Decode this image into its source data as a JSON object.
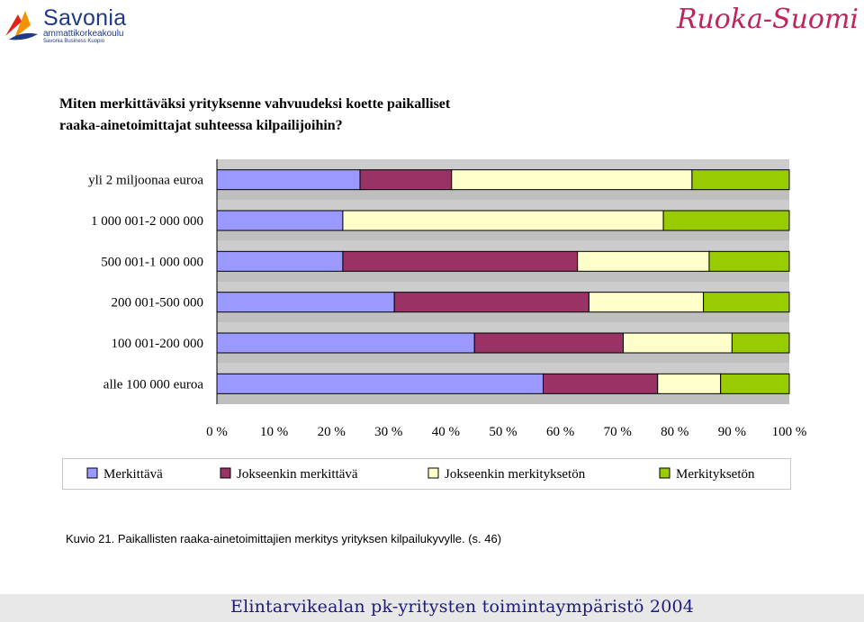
{
  "header": {
    "logo_name": "Savonia",
    "logo_sub": "ammattikorkeakoulu",
    "logo_sub2": "Savonia Business Kuopio",
    "brand": "Ruoka-Suomi"
  },
  "question": {
    "line1": "Miten merkittäväksi yrityksenne vahvuudeksi koette paikalliset",
    "line2": "raaka-ainetoimittajat suhteessa kilpailijoihin?"
  },
  "chart_data": {
    "type": "bar",
    "orientation": "horizontal",
    "stacked": "percent",
    "categories": [
      "yli 2 miljoonaa euroa",
      "1 000 001-2 000 000",
      "500 001-1 000 000",
      "200 001-500 000",
      "100 001-200 000",
      "alle 100 000 euroa"
    ],
    "series": [
      {
        "name": "Merkittävä",
        "color": "#9999ff",
        "values": [
          25,
          22,
          22,
          31,
          45,
          57
        ]
      },
      {
        "name": "Jokseenkin merkittävä",
        "color": "#993366",
        "values": [
          16,
          0,
          41,
          34,
          26,
          20
        ]
      },
      {
        "name": "Jokseenkin merkityksetön",
        "color": "#ffffcc",
        "values": [
          42,
          56,
          23,
          20,
          19,
          11
        ]
      },
      {
        "name": "Merkityksetön",
        "color": "#99cc00",
        "values": [
          17,
          22,
          14,
          15,
          10,
          12
        ]
      }
    ],
    "x_ticks": [
      "0 %",
      "10 %",
      "20 %",
      "30 %",
      "40 %",
      "50 %",
      "60 %",
      "70 %",
      "80 %",
      "90 %",
      "100 %"
    ],
    "xlim": [
      0,
      100
    ],
    "legend_position": "bottom",
    "grid": false
  },
  "caption": {
    "label": "Kuvio 21.",
    "text": " Paikallisten raaka-ainetoimittajien merkitys yrityksen kilpailukyvylle. (s. 46)"
  },
  "footer": {
    "text": "Elintarvikealan pk-yritysten toimintaympäristö 2004"
  }
}
